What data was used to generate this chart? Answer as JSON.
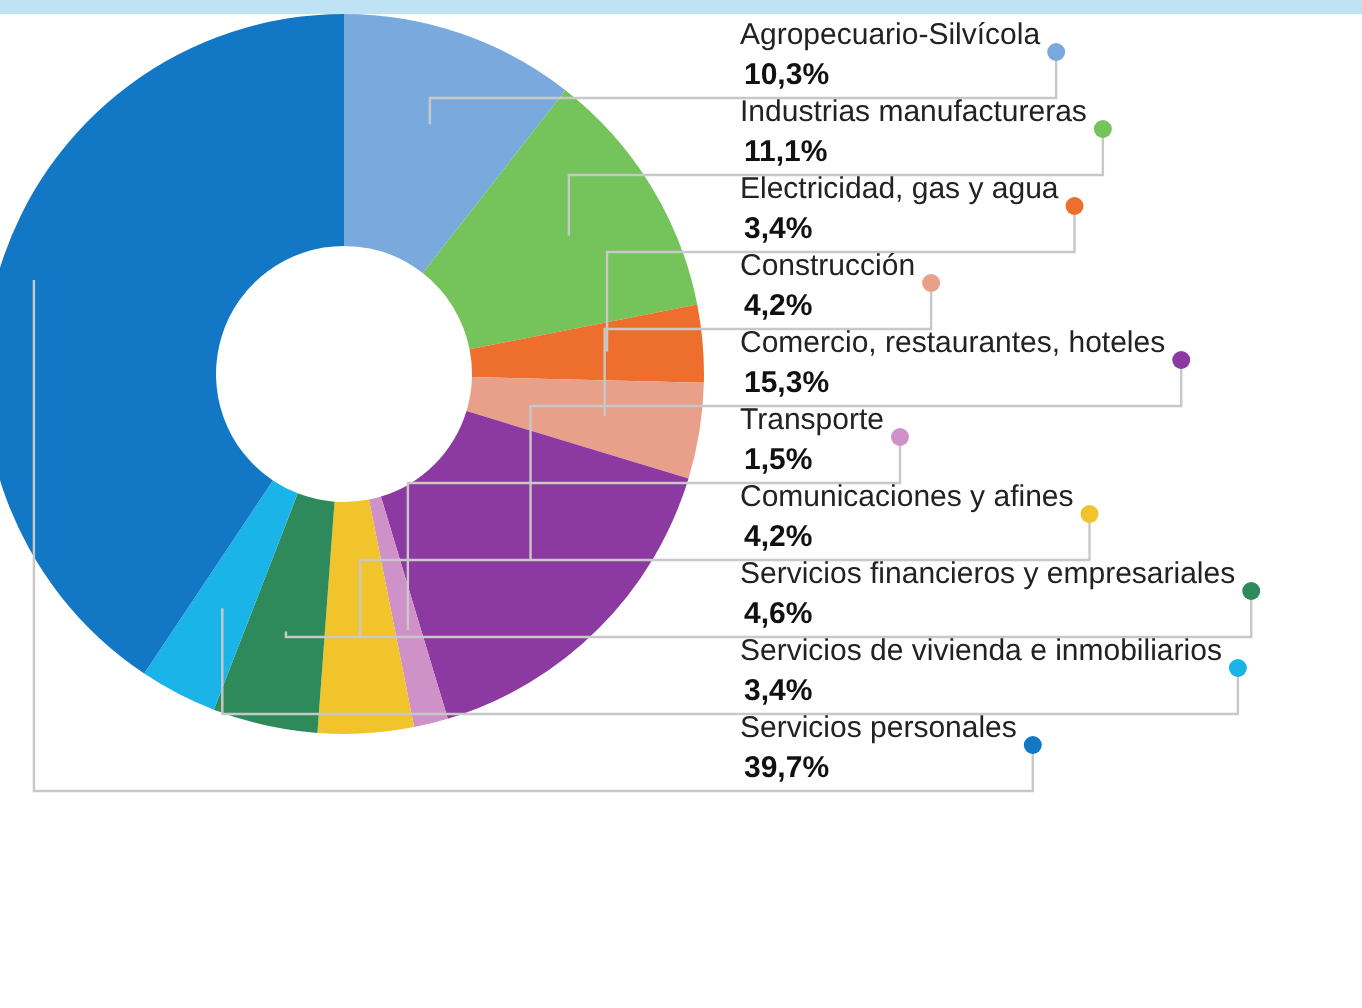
{
  "chart_data": {
    "type": "donut",
    "categories": [
      "Agropecuario-Silvícola",
      "Industrias manufactureras",
      "Electricidad, gas y agua",
      "Construcción",
      "Comercio, restaurantes, hoteles",
      "Transporte",
      "Comunicaciones y afines",
      "Servicios financieros y empresariales",
      "Servicios de vivienda e inmobiliarios",
      "Servicios personales"
    ],
    "values": [
      10.3,
      11.1,
      3.4,
      4.2,
      15.3,
      1.5,
      4.2,
      4.6,
      3.4,
      39.7
    ],
    "value_labels": [
      "10,3%",
      "11,1%",
      "3,4%",
      "4,2%",
      "15,3%",
      "1,5%",
      "4,2%",
      "4,6%",
      "3,4%",
      "39,7%"
    ],
    "colors": [
      "#7aaadd",
      "#74c35b",
      "#ee6f2d",
      "#e9a08a",
      "#8c3aa1",
      "#cf92c8",
      "#f2c42b",
      "#2e8a5a",
      "#1ab4e8",
      "#1277c5"
    ],
    "legend": "right"
  }
}
